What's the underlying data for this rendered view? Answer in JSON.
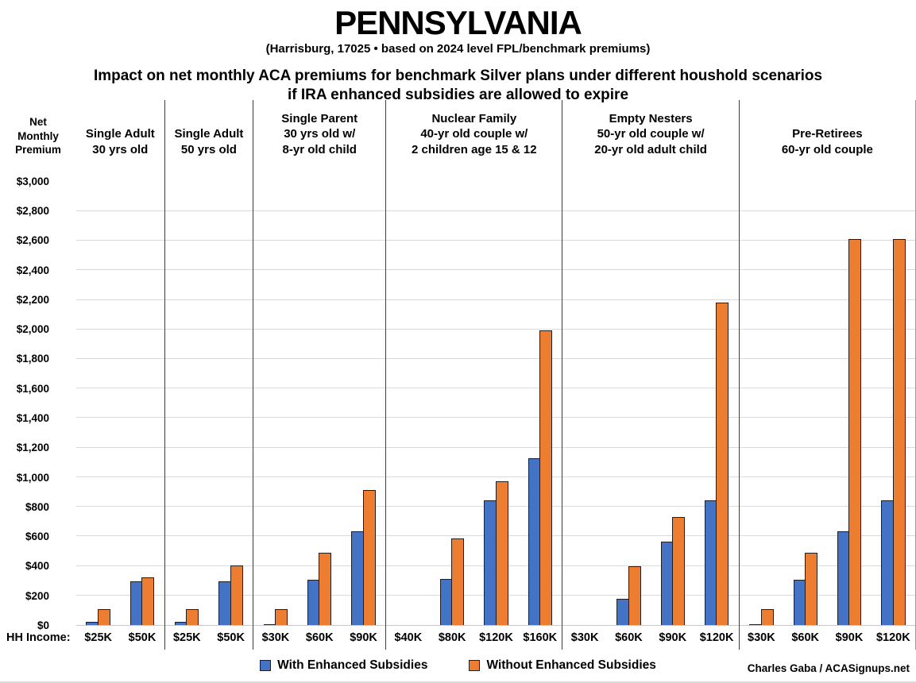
{
  "header": {
    "title": "PENNSYLVANIA",
    "subtitle": "(Harrisburg, 17025 • based on 2024 level FPL/benchmark premiums)",
    "chart_title_line1": "Impact on net monthly ACA premiums for benchmark Silver plans under different houshold scenarios",
    "chart_title_line2": "if IRA enhanced subsidies are allowed to expire"
  },
  "y_axis": {
    "title": "Net\nMonthly\nPremium",
    "tick_labels": [
      "$0",
      "$200",
      "$400",
      "$600",
      "$800",
      "$1,000",
      "$1,200",
      "$1,400",
      "$1,600",
      "$1,800",
      "$2,000",
      "$2,200",
      "$2,400",
      "$2,600",
      "$2,800",
      "$3,000"
    ],
    "tick_step": 200
  },
  "x_axis": {
    "row_label": "HH Income:"
  },
  "chart_data": {
    "type": "bar",
    "title": "Impact on net monthly ACA premiums for benchmark Silver plans under different houshold scenarios if IRA enhanced subsidies are allowed to expire",
    "ylabel": "Net Monthly Premium ($/month)",
    "ylim": [
      0,
      3100
    ],
    "gridlines": true,
    "legend_position": "bottom",
    "series_names": [
      "With Enhanced Subsidies",
      "Without Enhanced Subsidies"
    ],
    "groups": [
      {
        "label": "Single Adult\n30 yrs old",
        "categories": [
          "$25K",
          "$50K"
        ],
        "with_enhanced": [
          20,
          295
        ],
        "without_enhanced": [
          105,
          320
        ]
      },
      {
        "label": "Single Adult\n50 yrs old",
        "categories": [
          "$25K",
          "$50K"
        ],
        "with_enhanced": [
          20,
          295
        ],
        "without_enhanced": [
          105,
          405
        ]
      },
      {
        "label": "Single Parent\n30 yrs old w/\n8-yr old child",
        "categories": [
          "$30K",
          "$60K",
          "$90K"
        ],
        "with_enhanced": [
          5,
          305,
          635
        ],
        "without_enhanced": [
          105,
          490,
          915
        ]
      },
      {
        "label": "Nuclear Family\n40-yr old couple w/\n2 children age 15 & 12",
        "categories": [
          "$40K",
          "$80K",
          "$120K",
          "$160K"
        ],
        "with_enhanced": [
          0,
          310,
          845,
          1130
        ],
        "without_enhanced": [
          0,
          585,
          975,
          1995
        ]
      },
      {
        "label": "Empty Nesters\n50-yr old couple w/\n20-yr old adult child",
        "categories": [
          "$30K",
          "$60K",
          "$90K",
          "$120K"
        ],
        "with_enhanced": [
          0,
          180,
          565,
          845
        ],
        "without_enhanced": [
          0,
          395,
          730,
          2180
        ]
      },
      {
        "label": "Pre-Retirees\n60-yr old couple",
        "categories": [
          "$30K",
          "$60K",
          "$90K",
          "$120K"
        ],
        "with_enhanced": [
          5,
          305,
          635,
          845
        ],
        "without_enhanced": [
          105,
          490,
          2610,
          2610
        ]
      }
    ]
  },
  "legend": [
    {
      "label": "With Enhanced Subsidies",
      "color": "#4472C4"
    },
    {
      "label": "Without Enhanced Subsidies",
      "color": "#ED7D31"
    }
  ],
  "credit": "Charles Gaba / ACASignups.net",
  "colors": {
    "with_enhanced": "#4472C4",
    "without_enhanced": "#ED7D31",
    "bar_border": "#1f1f1f",
    "gridline": "#d9d9d9",
    "divider": "#3d3d3d"
  }
}
